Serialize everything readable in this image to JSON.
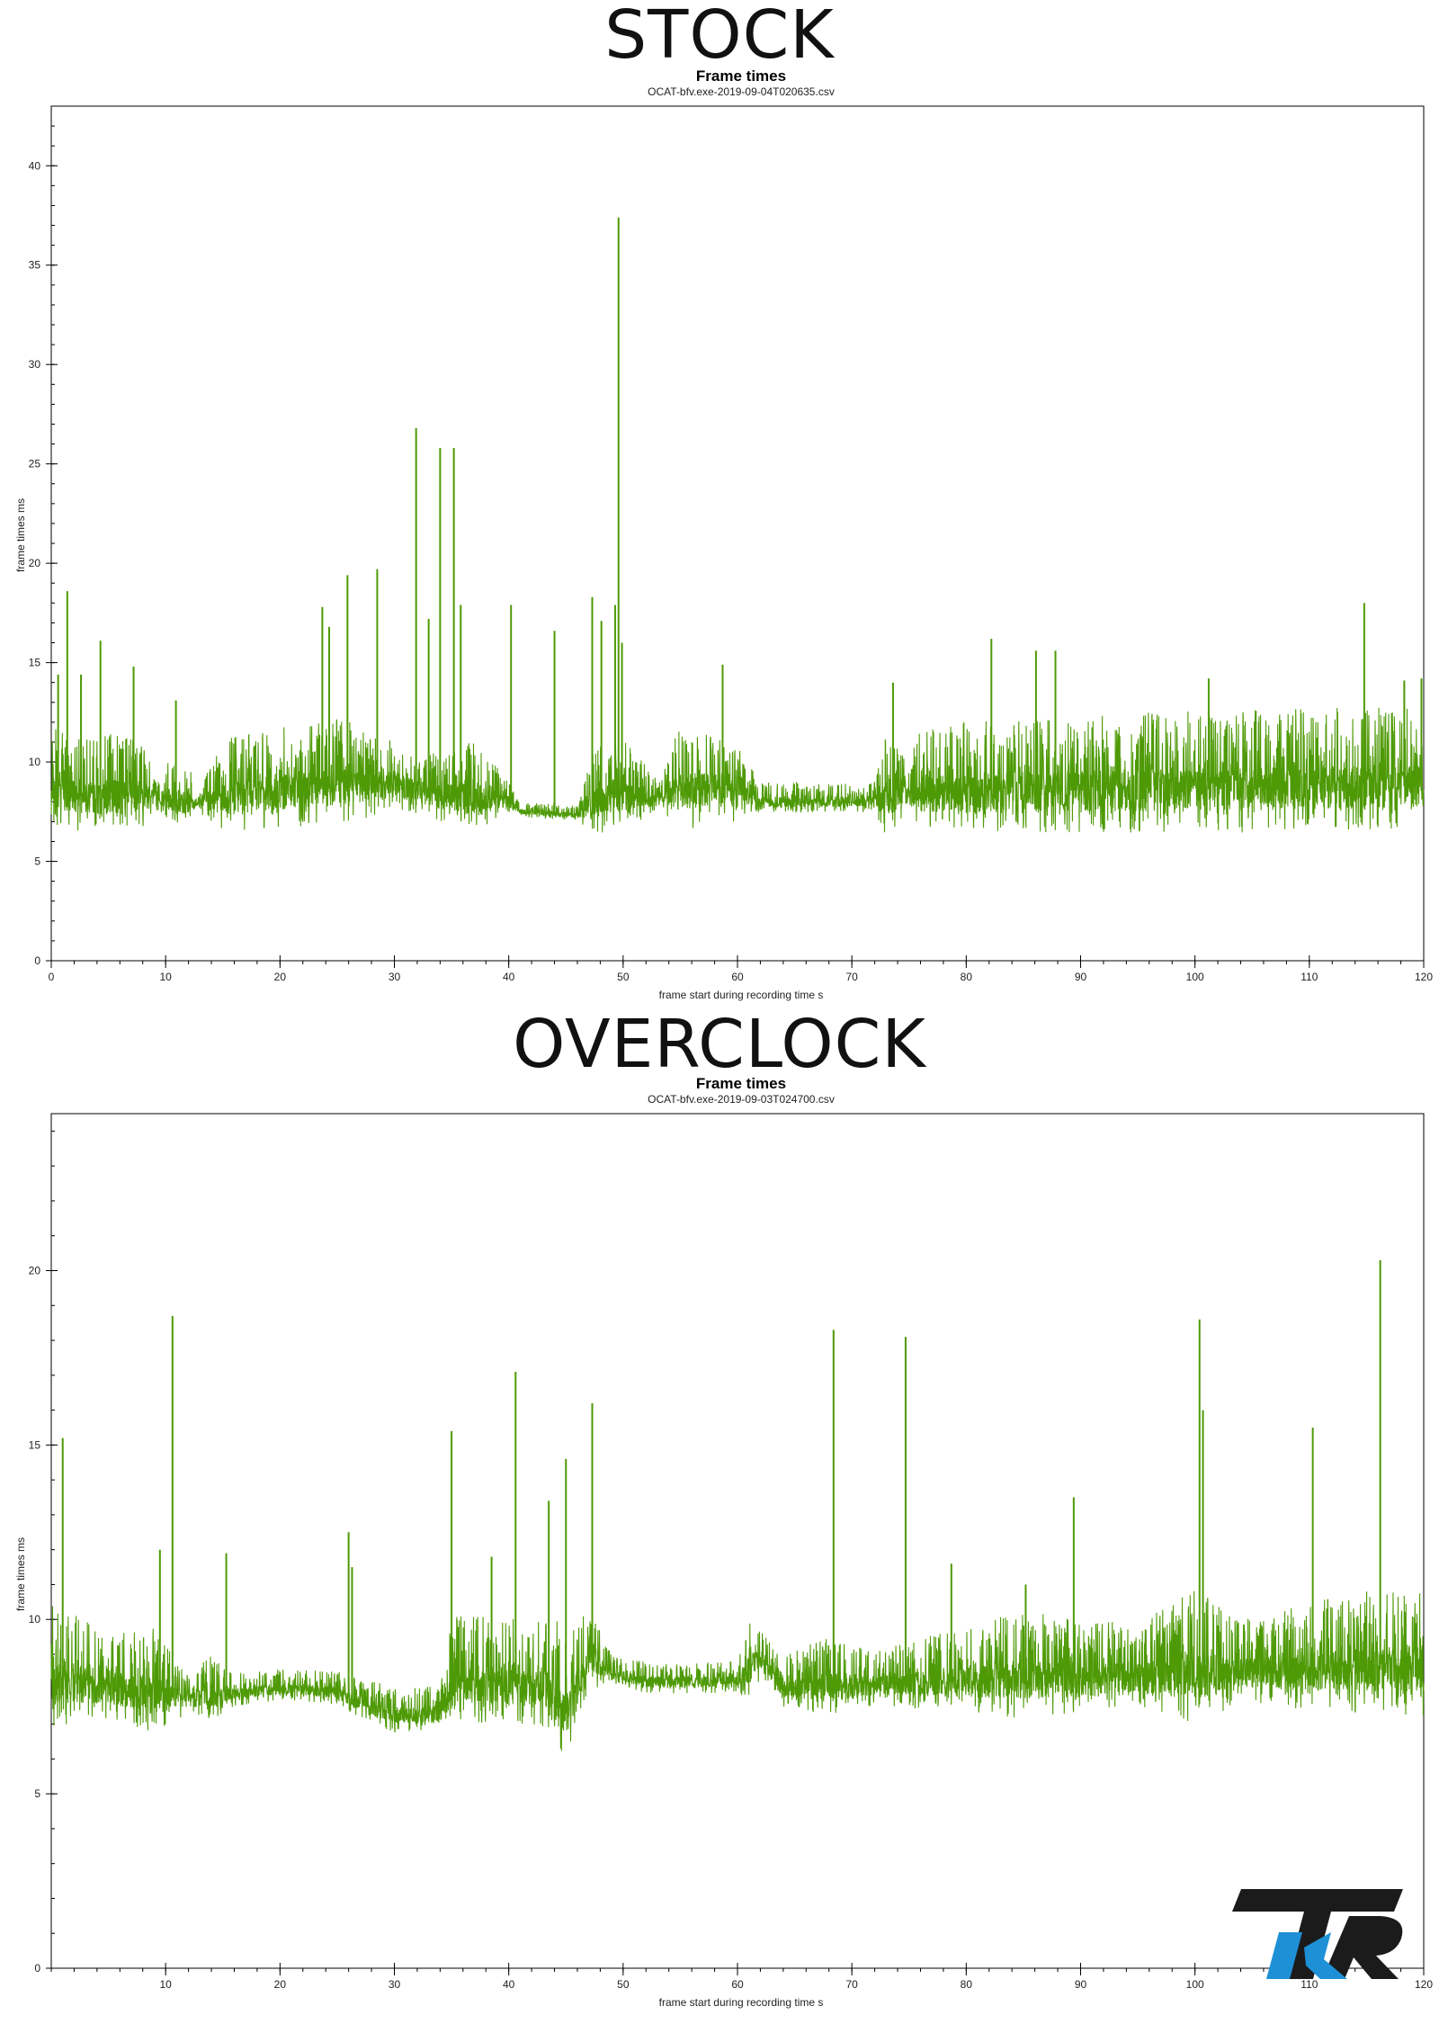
{
  "sections": [
    {
      "label": "STOCK"
    },
    {
      "label": "OVERCLOCK"
    }
  ],
  "chart_data": [
    {
      "type": "line",
      "title": "Frame times",
      "subtitle": "OCAT-bfv.exe-2019-09-04T020635.csv",
      "xlabel": "frame start during recording time s",
      "ylabel": "frame times ms",
      "xlim": [
        0,
        120
      ],
      "ylim": [
        0,
        43
      ],
      "xticks": [
        0,
        10,
        20,
        30,
        40,
        50,
        60,
        70,
        80,
        90,
        100,
        110,
        120
      ],
      "yticks": [
        0,
        5,
        10,
        15,
        20,
        25,
        30,
        35,
        40
      ],
      "line_color": "#4e9a06",
      "grid": false,
      "series": [
        {
          "baseline": [
            [
              0,
              8.3
            ],
            [
              10,
              8.2
            ],
            [
              12,
              7.9
            ],
            [
              20,
              8.5
            ],
            [
              30,
              8.9
            ],
            [
              33,
              8.3
            ],
            [
              40,
              8.0
            ],
            [
              41,
              7.5
            ],
            [
              46,
              7.3
            ],
            [
              48,
              8.2
            ],
            [
              50,
              8.2
            ],
            [
              53,
              8.1
            ],
            [
              58,
              8.7
            ],
            [
              62,
              8.0
            ],
            [
              72,
              8.0
            ],
            [
              75,
              8.4
            ],
            [
              110,
              8.7
            ],
            [
              120,
              8.8
            ]
          ],
          "noise": [
            [
              0,
              3.5
            ],
            [
              8,
              3.0
            ],
            [
              9,
              1.0
            ],
            [
              11,
              2.5
            ],
            [
              13,
              1.0
            ],
            [
              15,
              3.0
            ],
            [
              25,
              3.5
            ],
            [
              32,
              2.0
            ],
            [
              37,
              3.0
            ],
            [
              41,
              0.5
            ],
            [
              46,
              0.5
            ],
            [
              48,
              3.5
            ],
            [
              50,
              3.0
            ],
            [
              53,
              1.0
            ],
            [
              55,
              3.5
            ],
            [
              60,
              2.5
            ],
            [
              62,
              1.0
            ],
            [
              72,
              1.0
            ],
            [
              73,
              3.5
            ],
            [
              75,
              1.5
            ],
            [
              76,
              3.5
            ],
            [
              100,
              4.0
            ],
            [
              120,
              4.0
            ]
          ],
          "spikes": [
            [
              0.6,
              14.4
            ],
            [
              1.4,
              18.6
            ],
            [
              2.6,
              14.4
            ],
            [
              4.3,
              16.1
            ],
            [
              7.2,
              14.8
            ],
            [
              10.9,
              13.1
            ],
            [
              23.7,
              17.8
            ],
            [
              24.3,
              16.8
            ],
            [
              25.9,
              19.4
            ],
            [
              28.5,
              19.7
            ],
            [
              31.9,
              26.8
            ],
            [
              33.0,
              17.2
            ],
            [
              34.0,
              25.8
            ],
            [
              35.2,
              25.8
            ],
            [
              35.8,
              17.9
            ],
            [
              40.2,
              17.9
            ],
            [
              44.0,
              16.6
            ],
            [
              47.3,
              18.3
            ],
            [
              48.1,
              17.1
            ],
            [
              49.3,
              17.9
            ],
            [
              49.6,
              37.4
            ],
            [
              49.9,
              16.0
            ],
            [
              58.7,
              14.9
            ],
            [
              73.6,
              14.0
            ],
            [
              82.2,
              16.2
            ],
            [
              86.1,
              15.6
            ],
            [
              87.8,
              15.6
            ],
            [
              101.2,
              14.2
            ],
            [
              114.8,
              18.0
            ],
            [
              118.3,
              14.1
            ],
            [
              119.8,
              14.2
            ]
          ]
        }
      ]
    },
    {
      "type": "line",
      "title": "Frame times",
      "subtitle": "OCAT-bfv.exe-2019-09-03T024700.csv",
      "xlabel": "frame start during recording time s",
      "ylabel": "frame times ms",
      "xlim": [
        0,
        120
      ],
      "ylim": [
        0,
        24.5
      ],
      "xticks": [
        10,
        20,
        30,
        40,
        50,
        60,
        70,
        80,
        90,
        100,
        110,
        120
      ],
      "yticks": [
        0,
        5,
        10,
        15,
        20
      ],
      "line_color": "#4e9a06",
      "grid": false,
      "series": [
        {
          "baseline": [
            [
              0,
              8.3
            ],
            [
              5,
              8.0
            ],
            [
              12,
              7.7
            ],
            [
              20,
              8.0
            ],
            [
              25,
              7.9
            ],
            [
              27,
              7.6
            ],
            [
              30,
              7.2
            ],
            [
              34,
              7.3
            ],
            [
              35,
              8.2
            ],
            [
              43,
              8.0
            ],
            [
              45,
              7.3
            ],
            [
              47,
              8.8
            ],
            [
              49,
              8.4
            ],
            [
              52,
              8.2
            ],
            [
              60,
              8.2
            ],
            [
              62,
              8.9
            ],
            [
              64,
              8.0
            ],
            [
              80,
              8.2
            ],
            [
              100,
              8.4
            ],
            [
              120,
              8.6
            ]
          ],
          "noise": [
            [
              0,
              2.5
            ],
            [
              5,
              1.5
            ],
            [
              9,
              2.0
            ],
            [
              12,
              0.7
            ],
            [
              14,
              1.2
            ],
            [
              16,
              0.6
            ],
            [
              25,
              0.6
            ],
            [
              27,
              0.8
            ],
            [
              34,
              0.8
            ],
            [
              35,
              2.0
            ],
            [
              43,
              2.0
            ],
            [
              44,
              2.5
            ],
            [
              47,
              1.5
            ],
            [
              49,
              0.6
            ],
            [
              60,
              0.6
            ],
            [
              61,
              1.5
            ],
            [
              63,
              0.8
            ],
            [
              68,
              1.5
            ],
            [
              72,
              1.0
            ],
            [
              85,
              2.0
            ],
            [
              95,
              1.5
            ],
            [
              100,
              2.5
            ],
            [
              105,
              1.5
            ],
            [
              110,
              2.0
            ],
            [
              120,
              2.5
            ]
          ],
          "spikes": [
            [
              1.0,
              15.2
            ],
            [
              9.5,
              12.0
            ],
            [
              10.6,
              18.7
            ],
            [
              15.3,
              11.9
            ],
            [
              26.0,
              12.5
            ],
            [
              26.3,
              11.5
            ],
            [
              35.0,
              15.4
            ],
            [
              38.5,
              11.8
            ],
            [
              40.6,
              17.1
            ],
            [
              43.5,
              13.4
            ],
            [
              45.0,
              14.6
            ],
            [
              47.3,
              16.2
            ],
            [
              68.4,
              18.3
            ],
            [
              74.7,
              18.1
            ],
            [
              78.7,
              11.6
            ],
            [
              85.2,
              11.0
            ],
            [
              89.4,
              13.5
            ],
            [
              100.4,
              18.6
            ],
            [
              100.7,
              16.0
            ],
            [
              110.3,
              15.5
            ],
            [
              116.2,
              20.3
            ]
          ]
        }
      ]
    }
  ]
}
